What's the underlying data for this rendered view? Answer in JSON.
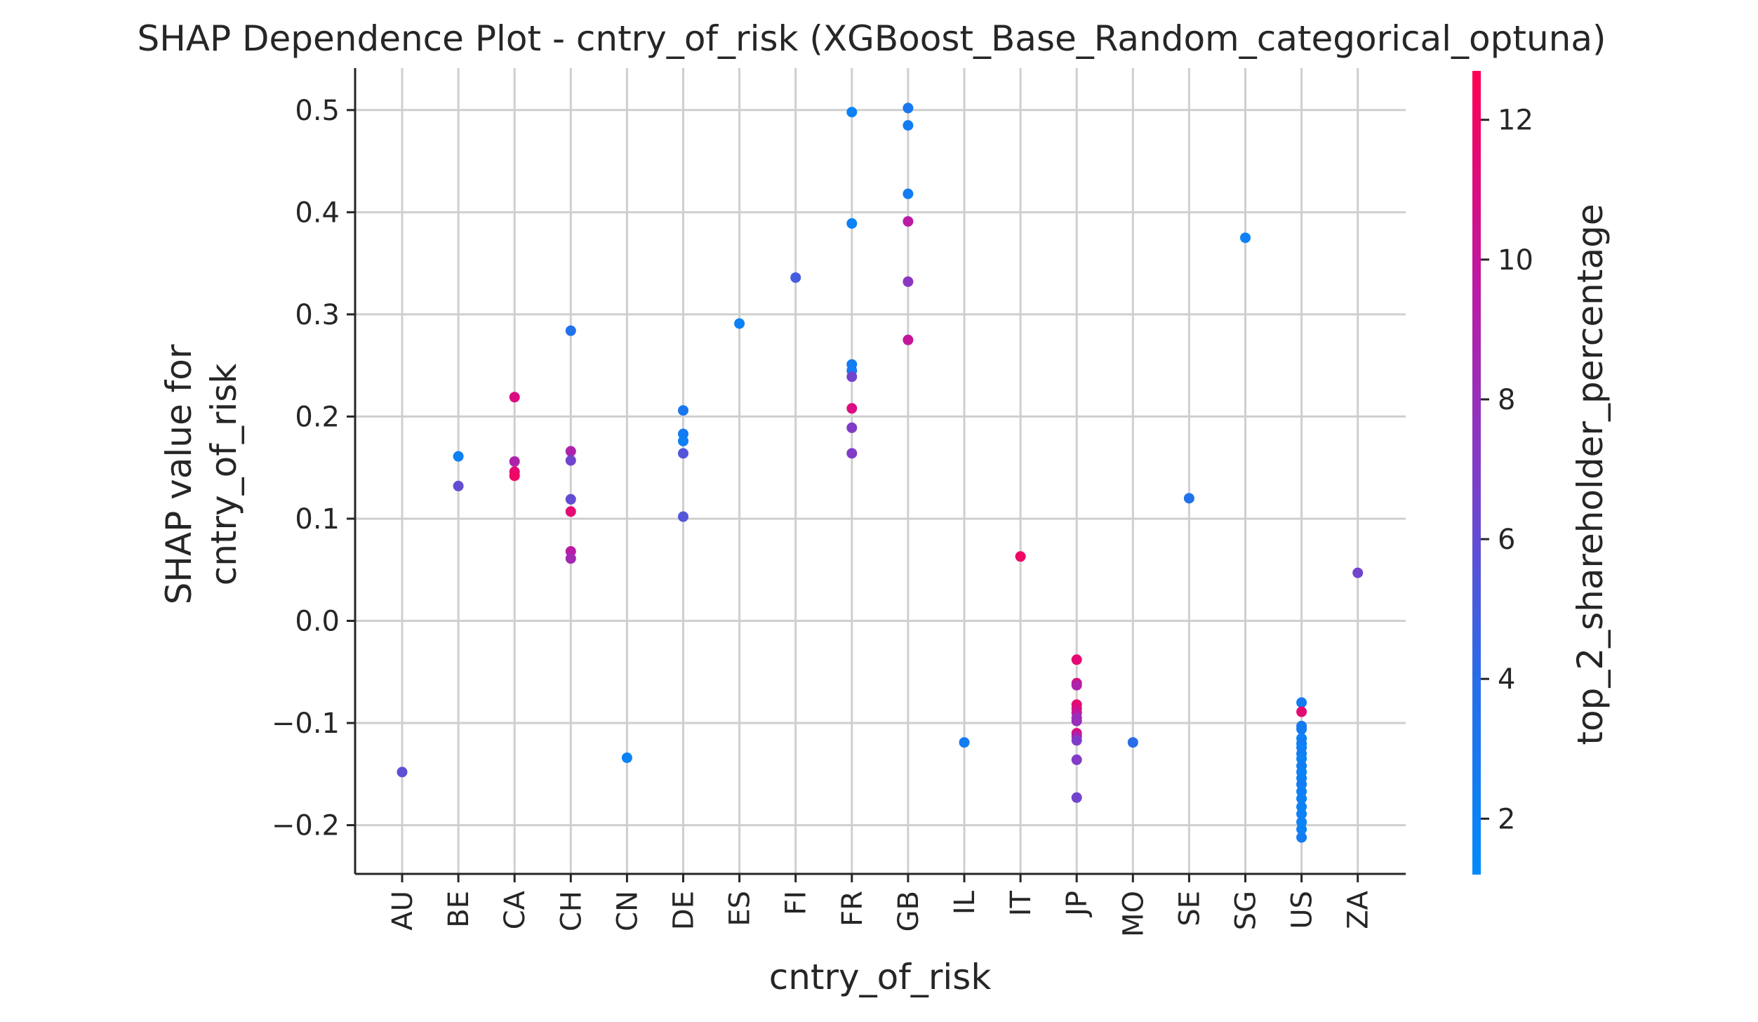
{
  "chart_data": {
    "type": "scatter",
    "title": "SHAP Dependence Plot - cntry_of_risk (XGBoost_Base_Random_categorical_optuna)",
    "xlabel": "cntry_of_risk",
    "ylabel_lines": [
      "SHAP value for",
      "cntry_of_risk"
    ],
    "colorbar_label": "top_2_shareholder_percentage",
    "categories": [
      "AU",
      "BE",
      "CA",
      "CH",
      "CN",
      "DE",
      "ES",
      "FI",
      "FR",
      "GB",
      "IL",
      "IT",
      "JP",
      "MO",
      "SE",
      "SG",
      "US",
      "ZA"
    ],
    "ylim": [
      -0.25,
      0.54
    ],
    "yticks": [
      -0.2,
      -0.1,
      0.0,
      0.1,
      0.2,
      0.3,
      0.4,
      0.5
    ],
    "ytick_labels": [
      "−0.2",
      "−0.1",
      "0.0",
      "0.1",
      "0.2",
      "0.3",
      "0.4",
      "0.5"
    ],
    "color_range": [
      1.2,
      12.7
    ],
    "colorbar_ticks": [
      2,
      4,
      6,
      8,
      10,
      12
    ],
    "colorbar_tick_labels": [
      "2",
      "4",
      "6",
      "8",
      "10",
      "12"
    ],
    "colormap": [
      "#008afb",
      "#2a6ce8",
      "#7f3dc8",
      "#c117a0",
      "#ff0052"
    ],
    "grid": true,
    "points": [
      {
        "x": "AU",
        "y": -0.148,
        "c": 5.8
      },
      {
        "x": "BE",
        "y": 0.161,
        "c": 2.2
      },
      {
        "x": "BE",
        "y": 0.132,
        "c": 6.0
      },
      {
        "x": "CA",
        "y": 0.219,
        "c": 11.0
      },
      {
        "x": "CA",
        "y": 0.156,
        "c": 9.0
      },
      {
        "x": "CA",
        "y": 0.146,
        "c": 11.5
      },
      {
        "x": "CA",
        "y": 0.142,
        "c": 12.0
      },
      {
        "x": "CH",
        "y": 0.284,
        "c": 3.5
      },
      {
        "x": "CH",
        "y": 0.166,
        "c": 9.0
      },
      {
        "x": "CH",
        "y": 0.157,
        "c": 6.5
      },
      {
        "x": "CH",
        "y": 0.119,
        "c": 6.0
      },
      {
        "x": "CH",
        "y": 0.107,
        "c": 11.5
      },
      {
        "x": "CH",
        "y": 0.068,
        "c": 9.5
      },
      {
        "x": "CH",
        "y": 0.061,
        "c": 8.5
      },
      {
        "x": "CN",
        "y": -0.134,
        "c": 2.0
      },
      {
        "x": "DE",
        "y": 0.206,
        "c": 3.0
      },
      {
        "x": "DE",
        "y": 0.183,
        "c": 2.5
      },
      {
        "x": "DE",
        "y": 0.176,
        "c": 2.2
      },
      {
        "x": "DE",
        "y": 0.164,
        "c": 5.5
      },
      {
        "x": "DE",
        "y": 0.102,
        "c": 5.5
      },
      {
        "x": "ES",
        "y": 0.291,
        "c": 2.0
      },
      {
        "x": "FI",
        "y": 0.336,
        "c": 5.0
      },
      {
        "x": "FR",
        "y": 0.498,
        "c": 2.0
      },
      {
        "x": "FR",
        "y": 0.389,
        "c": 2.0
      },
      {
        "x": "FR",
        "y": 0.251,
        "c": 2.5
      },
      {
        "x": "FR",
        "y": 0.245,
        "c": 2.5
      },
      {
        "x": "FR",
        "y": 0.239,
        "c": 6.5
      },
      {
        "x": "FR",
        "y": 0.208,
        "c": 11.0
      },
      {
        "x": "FR",
        "y": 0.189,
        "c": 7.0
      },
      {
        "x": "FR",
        "y": 0.164,
        "c": 7.0
      },
      {
        "x": "GB",
        "y": 0.502,
        "c": 3.0
      },
      {
        "x": "GB",
        "y": 0.485,
        "c": 2.5
      },
      {
        "x": "GB",
        "y": 0.418,
        "c": 2.5
      },
      {
        "x": "GB",
        "y": 0.391,
        "c": 9.5
      },
      {
        "x": "GB",
        "y": 0.332,
        "c": 7.5
      },
      {
        "x": "GB",
        "y": 0.275,
        "c": 10.0
      },
      {
        "x": "IL",
        "y": -0.119,
        "c": 2.5
      },
      {
        "x": "IT",
        "y": 0.063,
        "c": 12.0
      },
      {
        "x": "JP",
        "y": -0.038,
        "c": 11.5
      },
      {
        "x": "JP",
        "y": -0.061,
        "c": 11.0
      },
      {
        "x": "JP",
        "y": -0.063,
        "c": 9.0
      },
      {
        "x": "JP",
        "y": -0.082,
        "c": 11.5
      },
      {
        "x": "JP",
        "y": -0.086,
        "c": 11.0
      },
      {
        "x": "JP",
        "y": -0.09,
        "c": 10.0
      },
      {
        "x": "JP",
        "y": -0.095,
        "c": 8.0
      },
      {
        "x": "JP",
        "y": -0.098,
        "c": 8.0
      },
      {
        "x": "JP",
        "y": -0.11,
        "c": 11.0
      },
      {
        "x": "JP",
        "y": -0.113,
        "c": 9.0
      },
      {
        "x": "JP",
        "y": -0.117,
        "c": 7.0
      },
      {
        "x": "JP",
        "y": -0.136,
        "c": 7.0
      },
      {
        "x": "JP",
        "y": -0.173,
        "c": 6.5
      },
      {
        "x": "MO",
        "y": -0.119,
        "c": 4.0
      },
      {
        "x": "SE",
        "y": 0.12,
        "c": 3.5
      },
      {
        "x": "SG",
        "y": 0.375,
        "c": 2.0
      },
      {
        "x": "US",
        "y": -0.08,
        "c": 2.5
      },
      {
        "x": "US",
        "y": -0.089,
        "c": 11.5
      },
      {
        "x": "US",
        "y": -0.103,
        "c": 3.0
      },
      {
        "x": "US",
        "y": -0.106,
        "c": 2.5
      },
      {
        "x": "US",
        "y": -0.115,
        "c": 2.0
      },
      {
        "x": "US",
        "y": -0.12,
        "c": 2.5
      },
      {
        "x": "US",
        "y": -0.124,
        "c": 2.0
      },
      {
        "x": "US",
        "y": -0.13,
        "c": 2.5
      },
      {
        "x": "US",
        "y": -0.135,
        "c": 2.0
      },
      {
        "x": "US",
        "y": -0.142,
        "c": 2.5
      },
      {
        "x": "US",
        "y": -0.148,
        "c": 2.0
      },
      {
        "x": "US",
        "y": -0.154,
        "c": 2.0
      },
      {
        "x": "US",
        "y": -0.16,
        "c": 2.5
      },
      {
        "x": "US",
        "y": -0.167,
        "c": 2.0
      },
      {
        "x": "US",
        "y": -0.174,
        "c": 2.0
      },
      {
        "x": "US",
        "y": -0.182,
        "c": 2.0
      },
      {
        "x": "US",
        "y": -0.189,
        "c": 2.0
      },
      {
        "x": "US",
        "y": -0.197,
        "c": 2.0
      },
      {
        "x": "US",
        "y": -0.204,
        "c": 2.0
      },
      {
        "x": "US",
        "y": -0.212,
        "c": 2.5
      },
      {
        "x": "ZA",
        "y": 0.047,
        "c": 6.5
      }
    ]
  }
}
